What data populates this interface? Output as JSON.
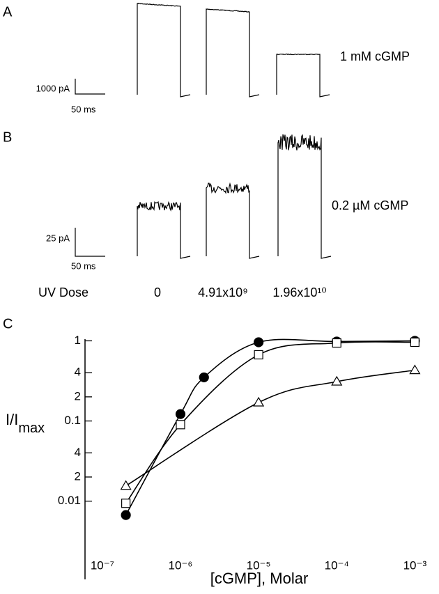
{
  "panel_a": {
    "label": "A",
    "scale_current": "1000 pA",
    "scale_time": "50 ms",
    "condition": "1 mM  cGMP"
  },
  "panel_b": {
    "label": "B",
    "scale_current": "25 pA",
    "scale_time": "50 ms",
    "condition": "0.2  µM cGMP",
    "dose_title": "UV Dose",
    "doses": [
      "0",
      "4.91x10⁹",
      "1.96x10¹⁰"
    ]
  },
  "chart_data": {
    "type": "scatter",
    "panel_label": "C",
    "ylabel": "I/I",
    "ylabel_sub": "max",
    "xlabel": "[cGMP], Molar",
    "log_x": true,
    "log_y": true,
    "xlim": [
      6e-08,
      0.0011
    ],
    "ylim": [
      0.0009,
      1.05
    ],
    "xticks": [
      {
        "value": 1e-07,
        "label": "10⁻⁷"
      },
      {
        "value": 1e-06,
        "label": "10⁻⁶"
      },
      {
        "value": 1e-05,
        "label": "10⁻⁵"
      },
      {
        "value": 0.0001,
        "label": "10⁻⁴"
      },
      {
        "value": 0.001,
        "label": "10⁻³"
      }
    ],
    "yticks": [
      1,
      {
        "value": 0.4,
        "label": "4"
      },
      {
        "value": 0.2,
        "label": "2"
      },
      0.1,
      {
        "value": 0.04,
        "label": "4"
      },
      {
        "value": 0.02,
        "label": "2"
      },
      0.01
    ],
    "series": [
      {
        "marker": "filled-circle",
        "color": "#000000",
        "x": [
          2e-07,
          1e-06,
          2e-06,
          1e-05,
          0.0001,
          0.001
        ],
        "values": [
          0.0067,
          0.122,
          0.35,
          0.96,
          0.98,
          1.0
        ]
      },
      {
        "marker": "open-square",
        "color": "#000000",
        "x": [
          2e-07,
          1e-06,
          1e-05,
          0.0001,
          0.001
        ],
        "values": [
          0.0094,
          0.09,
          0.67,
          0.94,
          0.96
        ]
      },
      {
        "marker": "open-triangle",
        "color": "#000000",
        "x": [
          2e-07,
          1e-05,
          0.0001,
          0.001
        ],
        "values": [
          0.0155,
          0.17,
          0.31,
          0.43
        ]
      }
    ]
  }
}
